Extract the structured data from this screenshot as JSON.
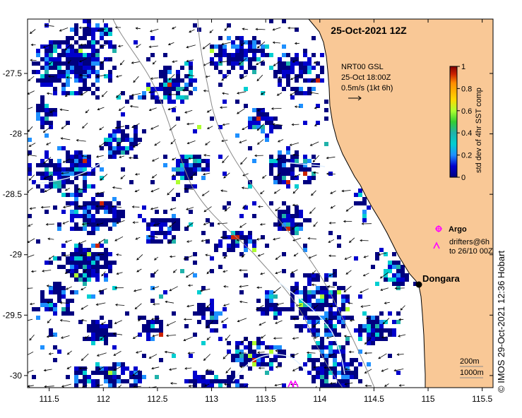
{
  "map": {
    "title": "25-Oct-2021 12Z",
    "x_ticks": [
      "111.5",
      "112",
      "112.5",
      "113",
      "113.5",
      "114",
      "114.5",
      "115",
      "115.5"
    ],
    "y_ticks": [
      "-27.5",
      "-28",
      "-28.5",
      "-29",
      "-29.5",
      "-30"
    ],
    "lon_range": [
      111.3,
      115.6
    ],
    "lat_range": [
      -30.1,
      -27.05
    ],
    "land_color": "#f9c896",
    "ocean_color": "#ffffff",
    "place": {
      "name": "Dongara",
      "lon": 114.93,
      "lat": -29.25
    }
  },
  "velocity_info": {
    "line1": "NRT00 GSL",
    "line2": "25-Oct 18:00Z",
    "line3": "0.5m/s (1kt 6h)"
  },
  "colorbar": {
    "label": "std dev of 4hr SST comp",
    "ticks": [
      "1",
      "0.8",
      "0.6",
      "0.4",
      "0.2",
      "0"
    ],
    "colors": [
      "#000080",
      "#0000cd",
      "#1e90ff",
      "#00ced1",
      "#20b2aa",
      "#32cd32",
      "#adff2f",
      "#ffd700",
      "#ff8c00",
      "#cc2200",
      "#800000"
    ]
  },
  "legend": {
    "argo_label": "Argo",
    "drifters_line1": "drifters@6h",
    "drifters_line2": "to 26/10 00Z",
    "symbol_color": "#ff00ff"
  },
  "depth_labels": {
    "d1": "200m",
    "d2": "1000m"
  },
  "credit": "© IMOS 29-Oct-2021 12:36 Hobart"
}
